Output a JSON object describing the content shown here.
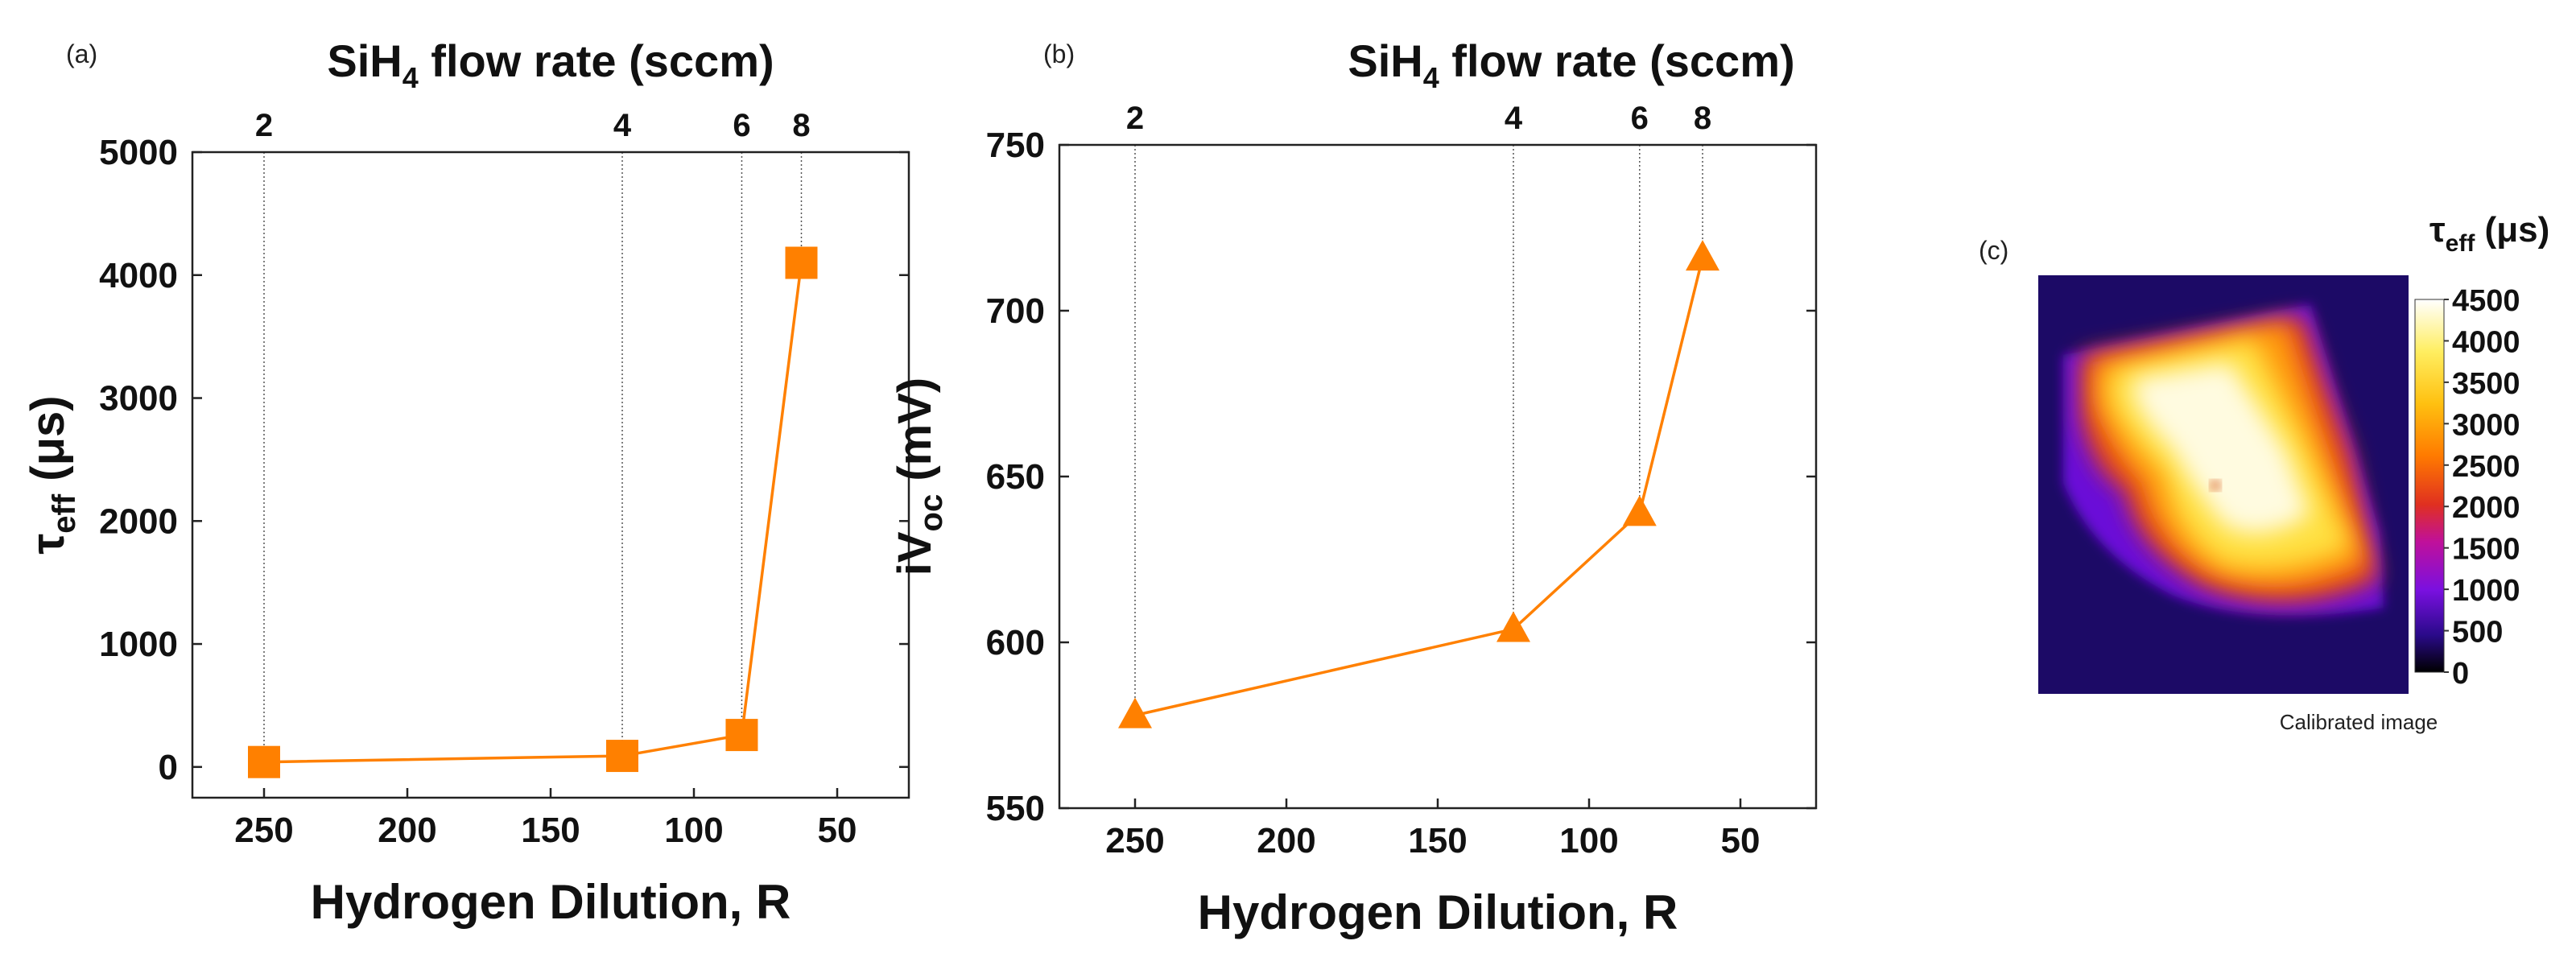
{
  "chart_data": [
    {
      "type": "line",
      "panel_label": "(a)",
      "top_axis_title": "SiH4 flow rate (sccm)",
      "top_axis_title_parts": [
        "SiH",
        "4",
        " flow rate (sccm)"
      ],
      "top_ticks": [
        "2",
        "4",
        "6",
        "8"
      ],
      "xlabel": "Hydrogen Dilution, R",
      "ylabel_parts": [
        "τ",
        "eff",
        " (μs)"
      ],
      "xlim": [
        275,
        25
      ],
      "ylim": [
        -250,
        5000
      ],
      "xticks": [
        250,
        200,
        150,
        100,
        50
      ],
      "yticks": [
        0,
        1000,
        2000,
        3000,
        4000,
        5000
      ],
      "marker": "square",
      "color": "#ff8000",
      "x": [
        250,
        125,
        83.3,
        62.5
      ],
      "y": [
        40,
        90,
        260,
        4100
      ]
    },
    {
      "type": "line",
      "panel_label": "(b)",
      "top_axis_title": "SiH4 flow rate (sccm)",
      "top_axis_title_parts": [
        "SiH",
        "4",
        " flow rate (sccm)"
      ],
      "top_ticks": [
        "2",
        "4",
        "6",
        "8"
      ],
      "xlabel": "Hydrogen Dilution, R",
      "ylabel_parts": [
        "iV",
        "oc",
        " (mV)"
      ],
      "xlim": [
        275,
        25
      ],
      "ylim": [
        550,
        750
      ],
      "xticks": [
        250,
        200,
        150,
        100,
        50
      ],
      "yticks": [
        550,
        600,
        650,
        700,
        750
      ],
      "marker": "triangle",
      "color": "#ff8000",
      "x": [
        250,
        125,
        83.3,
        62.5
      ],
      "y": [
        578,
        604,
        639,
        716
      ]
    }
  ],
  "image_panel": {
    "panel_label": "(c)",
    "colorbar_title_parts": [
      "τ",
      "eff",
      " (μs)"
    ],
    "colorbar_ticks": [
      "4500",
      "4000",
      "3500",
      "3000",
      "2500",
      "2000",
      "1500",
      "1000",
      "500",
      "0"
    ],
    "colormap": [
      "#000000",
      "#2a0a8a",
      "#7a10e0",
      "#c0109a",
      "#e03020",
      "#ff7a00",
      "#ffc010",
      "#ffee60",
      "#ffffff"
    ],
    "caption": "Calibrated image"
  }
}
